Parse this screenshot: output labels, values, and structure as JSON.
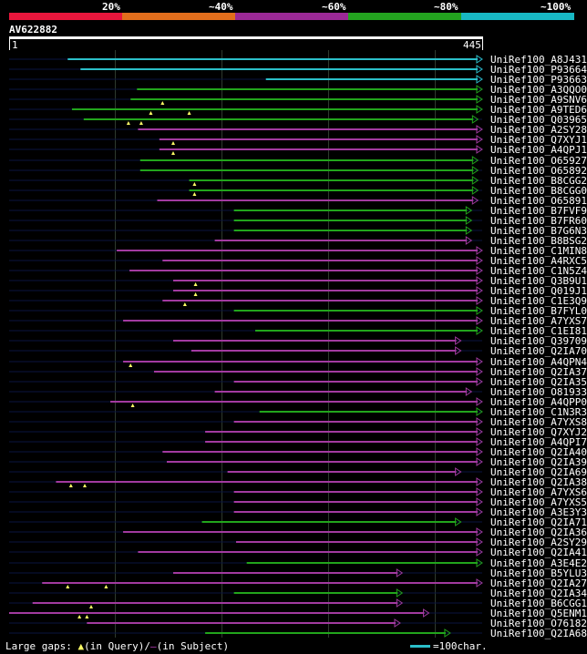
{
  "legend": {
    "labels": [
      "20%",
      "~40%",
      "~60%",
      "~80%",
      "~100%"
    ],
    "colors": [
      "#e8163c",
      "#e26e1c",
      "#9b2996",
      "#23a31f",
      "#18b8c4"
    ]
  },
  "query": {
    "name": "AV622882",
    "start": "1",
    "end": "445",
    "length": 445
  },
  "colors": {
    "cyan": "#2bbfc9",
    "green": "#22a51c",
    "magenta": "#a23aa0",
    "dark": "#0a1440",
    "triangle": "#ffff66",
    "grid": "#2e3a2e"
  },
  "hits": [
    {
      "name": "UniRef100_A8J431",
      "color": "cyan",
      "start": 56,
      "end": 445,
      "gaps": []
    },
    {
      "name": "UniRef100_P93664",
      "color": "cyan",
      "start": 68,
      "end": 445,
      "gaps": []
    },
    {
      "name": "UniRef100_P93663",
      "color": "cyan",
      "start": 242,
      "end": 445,
      "gaps": []
    },
    {
      "name": "UniRef100_A3QQO0",
      "color": "green",
      "start": 121,
      "end": 445,
      "gaps": []
    },
    {
      "name": "UniRef100_A9SNV6",
      "color": "green",
      "start": 115,
      "end": 445,
      "gaps": [
        145
      ]
    },
    {
      "name": "UniRef100_A9TED6",
      "color": "green",
      "start": 60,
      "end": 445,
      "gaps": [
        134,
        170
      ]
    },
    {
      "name": "UniRef100_Q03965",
      "color": "green",
      "start": 71,
      "end": 441,
      "gaps": [
        113,
        125
      ]
    },
    {
      "name": "UniRef100_A2SY28",
      "color": "magenta",
      "start": 122,
      "end": 445,
      "gaps": []
    },
    {
      "name": "UniRef100_Q7XYJ1",
      "color": "magenta",
      "start": 142,
      "end": 445,
      "gaps": [
        155
      ]
    },
    {
      "name": "UniRef100_A4QPJ1",
      "color": "magenta",
      "start": 142,
      "end": 445,
      "gaps": [
        155
      ]
    },
    {
      "name": "UniRef100_O65927",
      "color": "green",
      "start": 124,
      "end": 441,
      "gaps": []
    },
    {
      "name": "UniRef100_O65892",
      "color": "green",
      "start": 124,
      "end": 441,
      "gaps": []
    },
    {
      "name": "UniRef100_B8CGG2",
      "color": "green",
      "start": 170,
      "end": 441,
      "gaps": [
        175
      ]
    },
    {
      "name": "UniRef100_B8CGG0",
      "color": "green",
      "start": 170,
      "end": 441,
      "gaps": [
        175
      ]
    },
    {
      "name": "UniRef100_O65891",
      "color": "magenta",
      "start": 140,
      "end": 441,
      "gaps": []
    },
    {
      "name": "UniRef100_B7FVF9",
      "color": "green",
      "start": 212,
      "end": 435,
      "gaps": []
    },
    {
      "name": "UniRef100_B7FR60",
      "color": "green",
      "start": 212,
      "end": 435,
      "gaps": []
    },
    {
      "name": "UniRef100_B7G6N3",
      "color": "green",
      "start": 212,
      "end": 435,
      "gaps": []
    },
    {
      "name": "UniRef100_B8BSG2",
      "color": "magenta",
      "start": 194,
      "end": 435,
      "gaps": []
    },
    {
      "name": "UniRef100_C1MIN8",
      "color": "magenta",
      "start": 102,
      "end": 445,
      "gaps": []
    },
    {
      "name": "UniRef100_A4RXC5",
      "color": "magenta",
      "start": 145,
      "end": 445,
      "gaps": []
    },
    {
      "name": "UniRef100_C1N5Z4",
      "color": "magenta",
      "start": 114,
      "end": 445,
      "gaps": []
    },
    {
      "name": "UniRef100_Q3B9U1",
      "color": "magenta",
      "start": 155,
      "end": 445,
      "gaps": [
        176
      ]
    },
    {
      "name": "UniRef100_Q019J1",
      "color": "magenta",
      "start": 155,
      "end": 445,
      "gaps": [
        176
      ]
    },
    {
      "name": "UniRef100_C1E3Q9",
      "color": "magenta",
      "start": 145,
      "end": 445,
      "gaps": [
        166
      ]
    },
    {
      "name": "UniRef100_B7FYL0",
      "color": "green",
      "start": 212,
      "end": 445,
      "gaps": []
    },
    {
      "name": "UniRef100_A7YXS7",
      "color": "magenta",
      "start": 108,
      "end": 445,
      "gaps": []
    },
    {
      "name": "UniRef100_C1EI81",
      "color": "green",
      "start": 232,
      "end": 445,
      "gaps": []
    },
    {
      "name": "UniRef100_Q39709",
      "color": "magenta",
      "start": 155,
      "end": 425,
      "gaps": []
    },
    {
      "name": "UniRef100_Q2IA70",
      "color": "magenta",
      "start": 172,
      "end": 425,
      "gaps": []
    },
    {
      "name": "UniRef100_A4QPN4",
      "color": "magenta",
      "start": 108,
      "end": 445,
      "gaps": [
        115
      ]
    },
    {
      "name": "UniRef100_Q2IA37",
      "color": "magenta",
      "start": 137,
      "end": 445,
      "gaps": []
    },
    {
      "name": "UniRef100_Q2IA35",
      "color": "magenta",
      "start": 212,
      "end": 445,
      "gaps": []
    },
    {
      "name": "UniRef100_O81933",
      "color": "magenta",
      "start": 194,
      "end": 435,
      "gaps": []
    },
    {
      "name": "UniRef100_A4QPP0",
      "color": "magenta",
      "start": 96,
      "end": 445,
      "gaps": [
        117
      ]
    },
    {
      "name": "UniRef100_C1N3R3",
      "color": "green",
      "start": 236,
      "end": 445,
      "gaps": []
    },
    {
      "name": "UniRef100_A7YXS8",
      "color": "magenta",
      "start": 212,
      "end": 445,
      "gaps": []
    },
    {
      "name": "UniRef100_Q7XYJ2",
      "color": "magenta",
      "start": 185,
      "end": 445,
      "gaps": []
    },
    {
      "name": "UniRef100_A4QPI7",
      "color": "magenta",
      "start": 185,
      "end": 445,
      "gaps": []
    },
    {
      "name": "UniRef100_Q2IA40",
      "color": "magenta",
      "start": 145,
      "end": 445,
      "gaps": []
    },
    {
      "name": "UniRef100_Q2IA39",
      "color": "magenta",
      "start": 149,
      "end": 445,
      "gaps": []
    },
    {
      "name": "UniRef100_Q2IA69",
      "color": "magenta",
      "start": 206,
      "end": 425,
      "gaps": []
    },
    {
      "name": "UniRef100_Q2IA38",
      "color": "magenta",
      "start": 45,
      "end": 445,
      "gaps": [
        59,
        72
      ]
    },
    {
      "name": "UniRef100_A7YXS6",
      "color": "magenta",
      "start": 212,
      "end": 445,
      "gaps": []
    },
    {
      "name": "UniRef100_A7YXS5",
      "color": "magenta",
      "start": 212,
      "end": 445,
      "gaps": []
    },
    {
      "name": "UniRef100_A3E3Y3",
      "color": "magenta",
      "start": 212,
      "end": 445,
      "gaps": []
    },
    {
      "name": "UniRef100_Q2IA71",
      "color": "green",
      "start": 182,
      "end": 425,
      "gaps": []
    },
    {
      "name": "UniRef100_Q2IA36",
      "color": "magenta",
      "start": 108,
      "end": 445,
      "gaps": []
    },
    {
      "name": "UniRef100_A2SY29",
      "color": "magenta",
      "start": 214,
      "end": 445,
      "gaps": []
    },
    {
      "name": "UniRef100_Q2IA41",
      "color": "magenta",
      "start": 122,
      "end": 445,
      "gaps": []
    },
    {
      "name": "UniRef100_A3E4E2",
      "color": "green",
      "start": 224,
      "end": 445,
      "gaps": []
    },
    {
      "name": "UniRef100_B5YLU3",
      "color": "magenta",
      "start": 155,
      "end": 370,
      "gaps": []
    },
    {
      "name": "UniRef100_Q2IA27",
      "color": "magenta",
      "start": 32,
      "end": 445,
      "gaps": [
        56,
        92
      ]
    },
    {
      "name": "UniRef100_Q2IA34",
      "color": "green",
      "start": 212,
      "end": 370,
      "gaps": []
    },
    {
      "name": "UniRef100_B6CGG1",
      "color": "magenta",
      "start": 23,
      "end": 370,
      "gaps": [
        78
      ]
    },
    {
      "name": "UniRef100_Q5ENM1",
      "color": "magenta",
      "start": 1,
      "end": 395,
      "gaps": [
        67,
        74
      ]
    },
    {
      "name": "UniRef100_O76182",
      "color": "magenta",
      "start": 74,
      "end": 368,
      "gaps": []
    },
    {
      "name": "UniRef100_Q2IA68",
      "color": "green",
      "start": 185,
      "end": 415,
      "gaps": []
    }
  ],
  "footer": {
    "gaps_prefix": "Large gaps: ",
    "query_note": "(in Query)/",
    "subject_note": "(in Subject)",
    "scale_label": "=100char."
  }
}
